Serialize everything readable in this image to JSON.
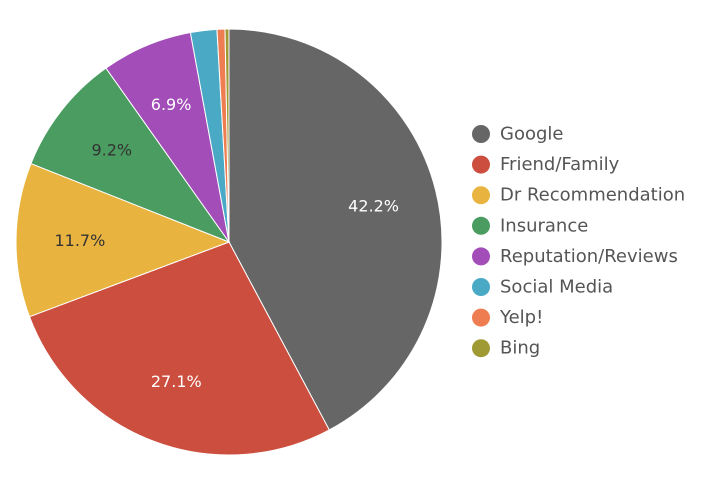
{
  "chart_data": {
    "type": "pie",
    "title": "",
    "legend_position": "right",
    "start_angle_deg": 0,
    "direction": "clockwise",
    "slices": [
      {
        "label": "Google",
        "value": 42.2,
        "value_label": "42.2%",
        "color": "#666666",
        "label_color": "#ffffff"
      },
      {
        "label": "Friend/Family",
        "value": 27.1,
        "value_label": "27.1%",
        "color": "#cc4e3e",
        "label_color": "#ffffff"
      },
      {
        "label": "Dr Recommendation",
        "value": 11.7,
        "value_label": "11.7%",
        "color": "#e8b43f",
        "label_color": "#333333"
      },
      {
        "label": "Insurance",
        "value": 9.2,
        "value_label": "9.2%",
        "color": "#4a9c60",
        "label_color": "#333333"
      },
      {
        "label": "Reputation/Reviews",
        "value": 6.9,
        "value_label": "6.9%",
        "color": "#a24db8",
        "label_color": "#ffffff"
      },
      {
        "label": "Social Media",
        "value": 2.0,
        "value_label": "",
        "color": "#4aaac5",
        "label_color": "#ffffff"
      },
      {
        "label": "Yelp!",
        "value": 0.6,
        "value_label": "",
        "color": "#ee7d52",
        "label_color": "#ffffff"
      },
      {
        "label": "Bing",
        "value": 0.3,
        "value_label": "",
        "color": "#a09a34",
        "label_color": "#ffffff"
      }
    ]
  }
}
